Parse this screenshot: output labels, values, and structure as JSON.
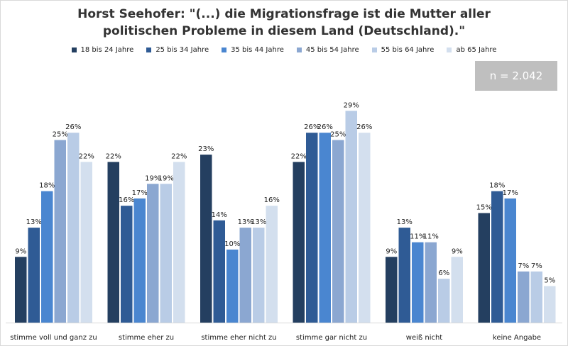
{
  "n_label": "n = 2.042",
  "chart_data": {
    "type": "bar",
    "title": "Horst Seehofer: \"(...) die Migrationsfrage ist die Mutter aller politischen Probleme in diesem Land (Deutschland).\"",
    "categories": [
      "stimme voll und ganz zu",
      "stimme eher zu",
      "stimme eher nicht zu",
      "stimme gar nicht zu",
      "weiß nicht",
      "keine Angabe"
    ],
    "series": [
      {
        "name": "18 bis 24 Jahre",
        "color": "#243f60",
        "values": [
          9,
          22,
          23,
          22,
          9,
          15
        ]
      },
      {
        "name": "25 bis 34 Jahre",
        "color": "#2f5b95",
        "values": [
          13,
          16,
          14,
          26,
          13,
          18
        ]
      },
      {
        "name": "35 bis 44 Jahre",
        "color": "#4a86d0",
        "values": [
          18,
          17,
          10,
          26,
          11,
          17
        ]
      },
      {
        "name": "45 bis 54 Jahre",
        "color": "#8ba7d1",
        "values": [
          25,
          19,
          13,
          25,
          11,
          7
        ]
      },
      {
        "name": "55 bis 64 Jahre",
        "color": "#b9cce6",
        "values": [
          26,
          19,
          13,
          29,
          6,
          7
        ]
      },
      {
        "name": "ab 65 Jahre",
        "color": "#d3dfee",
        "values": [
          22,
          22,
          16,
          26,
          9,
          5
        ]
      }
    ],
    "value_suffix": "%",
    "ylim": [
      0,
      29
    ],
    "grid": false,
    "legend": "top"
  }
}
